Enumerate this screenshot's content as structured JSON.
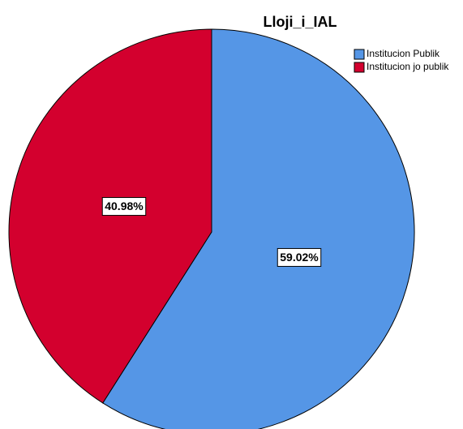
{
  "chart_data": {
    "type": "pie",
    "title": "Lloji_i_IAL",
    "categories": [
      "Institucion Publik",
      "Institucion jo publik"
    ],
    "values": [
      59.02,
      40.98
    ],
    "value_labels": [
      "59.02%",
      "40.98%"
    ],
    "colors": [
      "#5596e6",
      "#d3002e"
    ],
    "legend": "top-right"
  }
}
